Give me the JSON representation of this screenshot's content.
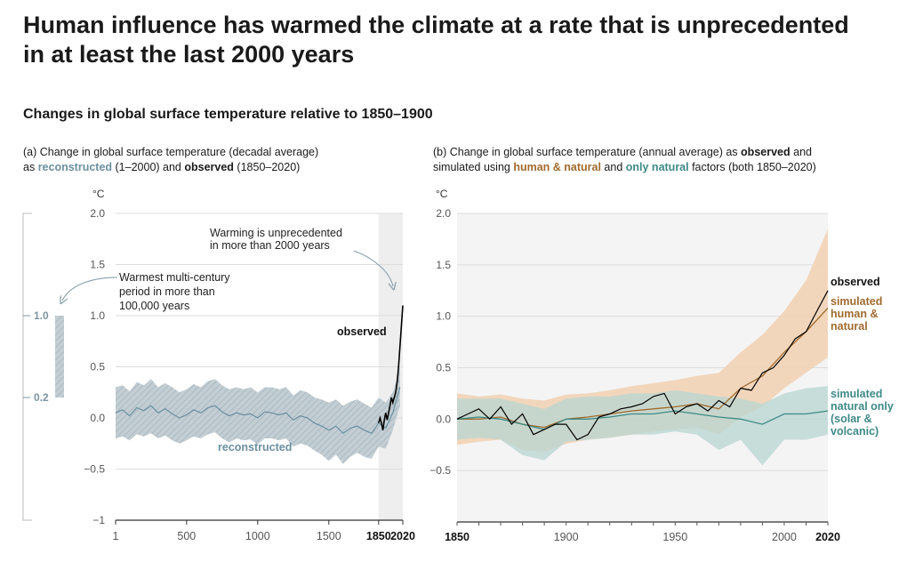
{
  "title": "Human influence has warmed the climate at a rate that is unprecedented in at least the last 2000 years",
  "subtitle": "Changes in global surface temperature relative to 1850–1900",
  "panel_a": {
    "caption_1": "(a) Change in global surface temperature (decadal average)",
    "caption_2_pre": "as ",
    "caption_2_recon": "reconstructed",
    "caption_2_mid": " (1–2000) and ",
    "caption_2_obs": "observed",
    "caption_2_post": " (1850–2020)",
    "unit": "°C",
    "annotation_warmest": [
      "Warmest multi-century",
      "period in more than",
      "100,000 years"
    ],
    "annotation_unprecedented": [
      "Warming is unprecedented",
      "in more than 2000 years"
    ],
    "label_observed": "observed",
    "label_reconstructed": "reconstructed",
    "range_bar_top": "1.0",
    "range_bar_bottom": "0.2"
  },
  "panel_b": {
    "caption_1": "(b) Change in global surface temperature (annual average) as ",
    "caption_1_obs": "observed",
    "caption_1_post": " and",
    "caption_2_pre": "simulated using ",
    "caption_2_human": "human & natural",
    "caption_2_mid": " and ",
    "caption_2_nat": "only natural",
    "caption_2_post": " factors (both 1850–2020)",
    "unit": "°C",
    "label_observed": "observed",
    "label_human": [
      "simulated",
      "human &",
      "natural"
    ],
    "label_natural": [
      "simulated",
      "natural only",
      "(solar &",
      "volcanic)"
    ]
  },
  "colors": {
    "reconstructed": "#6a8fa0",
    "reconstructed_band": "#c3ced4",
    "observed": "#000000",
    "human": "#a06b2e",
    "human_band": "#f2d3b6",
    "natural": "#3e8a88",
    "natural_band": "#b8d6d2",
    "grid": "#dcdcdc",
    "shade": "#eeeeee"
  },
  "chart_data": [
    {
      "type": "line",
      "panel": "a",
      "xlim": [
        1,
        2020
      ],
      "ylim": [
        -1,
        2
      ],
      "x_ticks": [
        "1",
        "500",
        "1000",
        "1500",
        "1850",
        "2020"
      ],
      "x_tick_values": [
        1,
        500,
        1000,
        1500,
        1850,
        2020
      ],
      "y_ticks": [
        "2.0",
        "1.5",
        "1.0",
        "0.5",
        "0.0",
        "−0.5",
        "−1"
      ],
      "y_tick_values": [
        2,
        1.5,
        1,
        0.5,
        0,
        -0.5,
        -1
      ],
      "grid": true,
      "shaded_range": [
        1850,
        2020
      ],
      "warmest_period_range": [
        0.2,
        1.0
      ],
      "series": [
        {
          "name": "reconstructed",
          "x": [
            1,
            50,
            100,
            150,
            200,
            250,
            300,
            350,
            400,
            450,
            500,
            550,
            600,
            650,
            700,
            750,
            800,
            850,
            900,
            950,
            1000,
            1050,
            1100,
            1150,
            1200,
            1250,
            1300,
            1350,
            1400,
            1450,
            1500,
            1550,
            1600,
            1650,
            1700,
            1750,
            1800,
            1850,
            1900,
            1950,
            2000
          ],
          "values": [
            0.05,
            0.08,
            0.02,
            0.1,
            0.07,
            0.12,
            0.05,
            0.09,
            0.04,
            0.0,
            0.03,
            0.08,
            0.05,
            0.1,
            0.12,
            0.06,
            0.02,
            0.05,
            0.03,
            0.04,
            0.0,
            0.06,
            0.05,
            0.03,
            0.05,
            -0.02,
            0.02,
            0.0,
            -0.05,
            -0.08,
            -0.12,
            -0.08,
            -0.15,
            -0.1,
            -0.08,
            -0.12,
            -0.15,
            -0.05,
            -0.1,
            0.05,
            0.3
          ],
          "lower": [
            -0.2,
            -0.18,
            -0.22,
            -0.16,
            -0.18,
            -0.15,
            -0.2,
            -0.17,
            -0.22,
            -0.25,
            -0.22,
            -0.18,
            -0.2,
            -0.16,
            -0.14,
            -0.2,
            -0.24,
            -0.2,
            -0.22,
            -0.21,
            -0.26,
            -0.2,
            -0.2,
            -0.22,
            -0.2,
            -0.28,
            -0.25,
            -0.27,
            -0.32,
            -0.36,
            -0.42,
            -0.36,
            -0.45,
            -0.38,
            -0.34,
            -0.38,
            -0.4,
            -0.28,
            -0.3,
            -0.12,
            0.12
          ],
          "upper": [
            0.3,
            0.32,
            0.26,
            0.35,
            0.32,
            0.38,
            0.3,
            0.34,
            0.3,
            0.25,
            0.28,
            0.33,
            0.3,
            0.36,
            0.38,
            0.32,
            0.28,
            0.3,
            0.28,
            0.3,
            0.25,
            0.3,
            0.3,
            0.28,
            0.3,
            0.22,
            0.27,
            0.25,
            0.2,
            0.18,
            0.15,
            0.18,
            0.12,
            0.16,
            0.18,
            0.14,
            0.1,
            0.2,
            0.15,
            0.25,
            0.5
          ]
        },
        {
          "name": "observed",
          "x": [
            1850,
            1860,
            1870,
            1880,
            1890,
            1900,
            1910,
            1920,
            1930,
            1940,
            1950,
            1960,
            1970,
            1980,
            1990,
            2000,
            2010,
            2020
          ],
          "values": [
            -0.05,
            0.0,
            -0.05,
            -0.12,
            -0.02,
            0.05,
            -0.02,
            0.05,
            0.12,
            0.2,
            0.15,
            0.2,
            0.25,
            0.35,
            0.5,
            0.7,
            0.9,
            1.1
          ]
        }
      ]
    },
    {
      "type": "line",
      "panel": "b",
      "xlim": [
        1850,
        2020
      ],
      "ylim": [
        -1,
        2
      ],
      "x_ticks": [
        "1850",
        "1900",
        "1950",
        "2000",
        "2020"
      ],
      "x_tick_values": [
        1850,
        1900,
        1950,
        2000,
        2020
      ],
      "y_ticks": [
        "2.0",
        "1.5",
        "1.0",
        "0.5",
        "0.0",
        "−0.5"
      ],
      "y_tick_values": [
        2,
        1.5,
        1,
        0.5,
        0,
        -0.5
      ],
      "grid": true,
      "series": [
        {
          "name": "observed",
          "x": [
            1850,
            1855,
            1860,
            1865,
            1870,
            1875,
            1880,
            1885,
            1890,
            1895,
            1900,
            1905,
            1910,
            1915,
            1920,
            1925,
            1930,
            1935,
            1940,
            1945,
            1950,
            1955,
            1960,
            1965,
            1970,
            1975,
            1980,
            1985,
            1990,
            1995,
            2000,
            2005,
            2010,
            2015,
            2020
          ],
          "values": [
            0.0,
            0.05,
            0.1,
            0.0,
            0.12,
            -0.05,
            0.05,
            -0.15,
            -0.1,
            -0.05,
            -0.05,
            -0.2,
            -0.15,
            0.02,
            0.05,
            0.1,
            0.12,
            0.15,
            0.22,
            0.25,
            0.05,
            0.12,
            0.15,
            0.08,
            0.18,
            0.12,
            0.3,
            0.28,
            0.45,
            0.5,
            0.62,
            0.78,
            0.85,
            1.05,
            1.25
          ]
        },
        {
          "name": "simulated human & natural",
          "x": [
            1850,
            1860,
            1870,
            1880,
            1890,
            1900,
            1910,
            1920,
            1930,
            1940,
            1950,
            1960,
            1970,
            1980,
            1990,
            2000,
            2010,
            2020
          ],
          "values": [
            0.0,
            0.0,
            0.02,
            -0.05,
            -0.08,
            0.0,
            0.02,
            0.05,
            0.08,
            0.1,
            0.12,
            0.15,
            0.1,
            0.3,
            0.42,
            0.65,
            0.85,
            1.08
          ],
          "lower": [
            -0.25,
            -0.22,
            -0.2,
            -0.3,
            -0.32,
            -0.24,
            -0.2,
            -0.18,
            -0.15,
            -0.12,
            -0.1,
            -0.08,
            -0.15,
            0.02,
            0.12,
            0.3,
            0.45,
            0.6
          ],
          "upper": [
            0.25,
            0.22,
            0.24,
            0.2,
            0.18,
            0.24,
            0.25,
            0.28,
            0.32,
            0.35,
            0.38,
            0.42,
            0.45,
            0.65,
            0.82,
            1.05,
            1.35,
            1.85
          ]
        },
        {
          "name": "simulated natural only (solar & volcanic)",
          "x": [
            1850,
            1860,
            1870,
            1880,
            1890,
            1900,
            1910,
            1920,
            1930,
            1940,
            1950,
            1960,
            1970,
            1980,
            1990,
            2000,
            2010,
            2020
          ],
          "values": [
            0.0,
            0.02,
            0.0,
            -0.05,
            -0.1,
            0.0,
            0.0,
            0.02,
            0.05,
            0.05,
            0.08,
            0.05,
            0.02,
            0.0,
            -0.05,
            0.05,
            0.05,
            0.08
          ],
          "lower": [
            -0.2,
            -0.18,
            -0.2,
            -0.35,
            -0.4,
            -0.22,
            -0.2,
            -0.18,
            -0.15,
            -0.15,
            -0.12,
            -0.15,
            -0.3,
            -0.2,
            -0.45,
            -0.2,
            -0.2,
            -0.15
          ],
          "upper": [
            0.2,
            0.2,
            0.2,
            0.15,
            0.1,
            0.2,
            0.22,
            0.22,
            0.25,
            0.25,
            0.28,
            0.25,
            0.22,
            0.2,
            0.15,
            0.25,
            0.3,
            0.32
          ]
        }
      ]
    }
  ]
}
